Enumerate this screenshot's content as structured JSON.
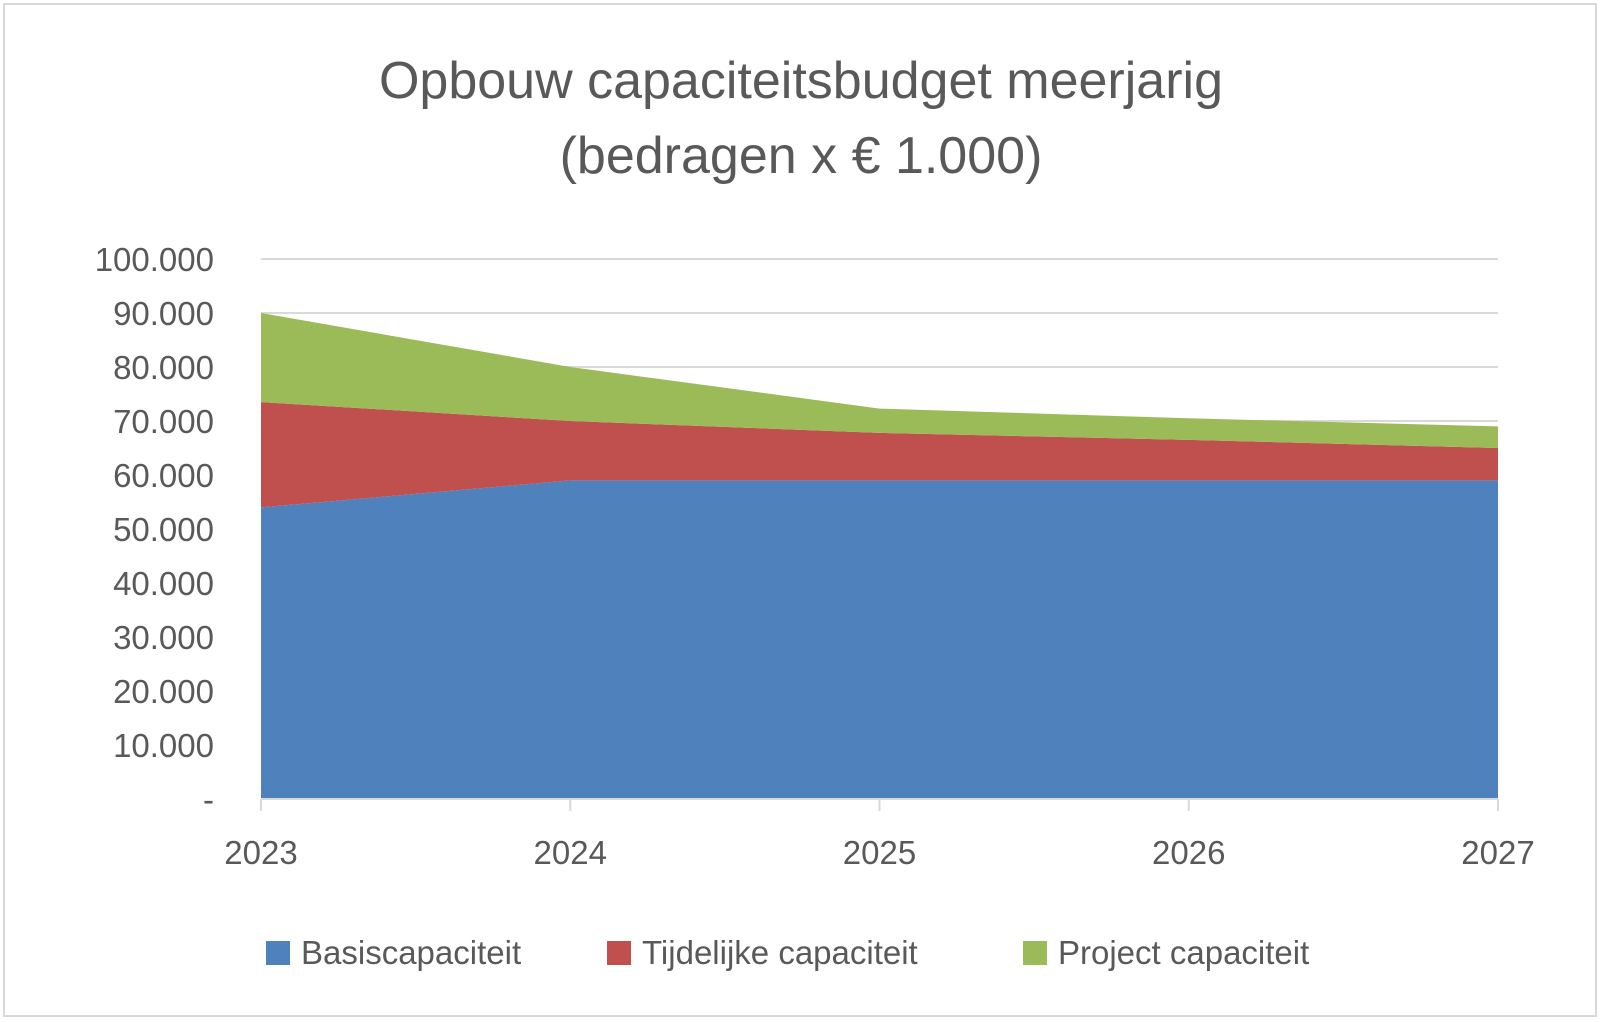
{
  "chart_data": {
    "type": "area",
    "stacked": true,
    "title": "Opbouw capaciteitsbudget meerjarig",
    "subtitle": "(bedragen x € 1.000)",
    "xlabel": "",
    "ylabel": "",
    "categories": [
      "2023",
      "2024",
      "2025",
      "2026",
      "2027"
    ],
    "ylim": [
      0,
      100000
    ],
    "yticks": [
      "-",
      "10.000",
      "20.000",
      "30.000",
      "40.000",
      "50.000",
      "60.000",
      "70.000",
      "80.000",
      "90.000",
      "100.000"
    ],
    "grid": true,
    "legend_position": "bottom",
    "series": [
      {
        "name": "Basiscapaciteit",
        "color": "#4f81bd",
        "values": [
          54000,
          59000,
          59000,
          59000,
          59000
        ]
      },
      {
        "name": "Tijdelijke capaciteit",
        "color": "#c0504d",
        "values": [
          19500,
          11000,
          8800,
          7500,
          6000
        ]
      },
      {
        "name": "Project capaciteit",
        "color": "#9bbb59",
        "values": [
          16500,
          10000,
          4500,
          4000,
          4000
        ]
      }
    ]
  }
}
